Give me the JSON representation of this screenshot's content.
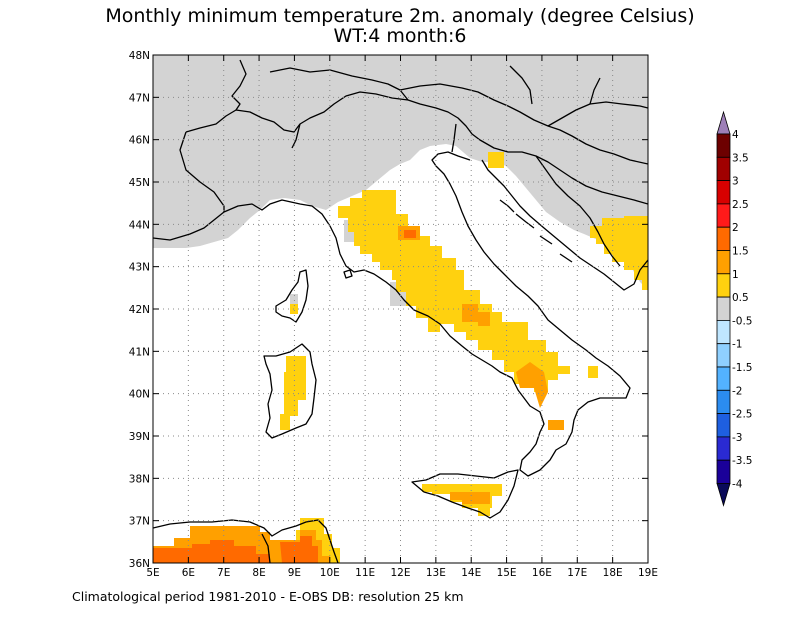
{
  "title": {
    "line1": "Monthly minimum temperature 2m. anomaly (degree Celsius)",
    "line2": "WT:4 month:6"
  },
  "footer": "Climatological period 1981-2010 - E-OBS DB: resolution 25 km",
  "map": {
    "lon_range": [
      5,
      19
    ],
    "lat_range": [
      36,
      48
    ],
    "lon_ticks": [
      "5E",
      "6E",
      "7E",
      "8E",
      "9E",
      "10E",
      "11E",
      "12E",
      "13E",
      "14E",
      "15E",
      "16E",
      "17E",
      "18E",
      "19E"
    ],
    "lat_ticks": [
      "36N",
      "37N",
      "38N",
      "39N",
      "40N",
      "41N",
      "42N",
      "43N",
      "44N",
      "45N",
      "46N",
      "47N",
      "48N"
    ],
    "gridlines": "dotted",
    "no_data_color": "#d3d3d3"
  },
  "colorbar": {
    "labels": [
      "4",
      "3.5",
      "3",
      "2.5",
      "2",
      "1.5",
      "1",
      "0.5",
      "-0.5",
      "-1",
      "-1.5",
      "-2",
      "-2.5",
      "-3",
      "-3.5",
      "-4"
    ],
    "bands": [
      {
        "label": "3.5 to 4",
        "color": "#6d0000"
      },
      {
        "label": "3 to 3.5",
        "color": "#a00000"
      },
      {
        "label": "2.5 to 3",
        "color": "#d70000"
      },
      {
        "label": "2 to 2.5",
        "color": "#ff1a1a"
      },
      {
        "label": "1.5 to 2",
        "color": "#ff6a00"
      },
      {
        "label": "1 to 1.5",
        "color": "#ffa000"
      },
      {
        "label": "0.5 to 1",
        "color": "#ffd10f"
      },
      {
        "label": "-0.5 to 0.5",
        "color": "#d3d3d3"
      },
      {
        "label": "-1 to -0.5",
        "color": "#bfe6ff"
      },
      {
        "label": "-1.5 to -1",
        "color": "#8fd0ff"
      },
      {
        "label": "-2 to -1.5",
        "color": "#53b2ff"
      },
      {
        "label": "-2.5 to -2",
        "color": "#2b8cf0"
      },
      {
        "label": "-3 to -2.5",
        "color": "#1e5fe0"
      },
      {
        "label": "-3.5 to -3",
        "color": "#2a2ad2"
      },
      {
        "label": "-4 to -3.5",
        "color": "#1a0099"
      }
    ],
    "overflow_high_color": "#9e7fb8",
    "overflow_low_color": "#0a0a5a"
  }
}
